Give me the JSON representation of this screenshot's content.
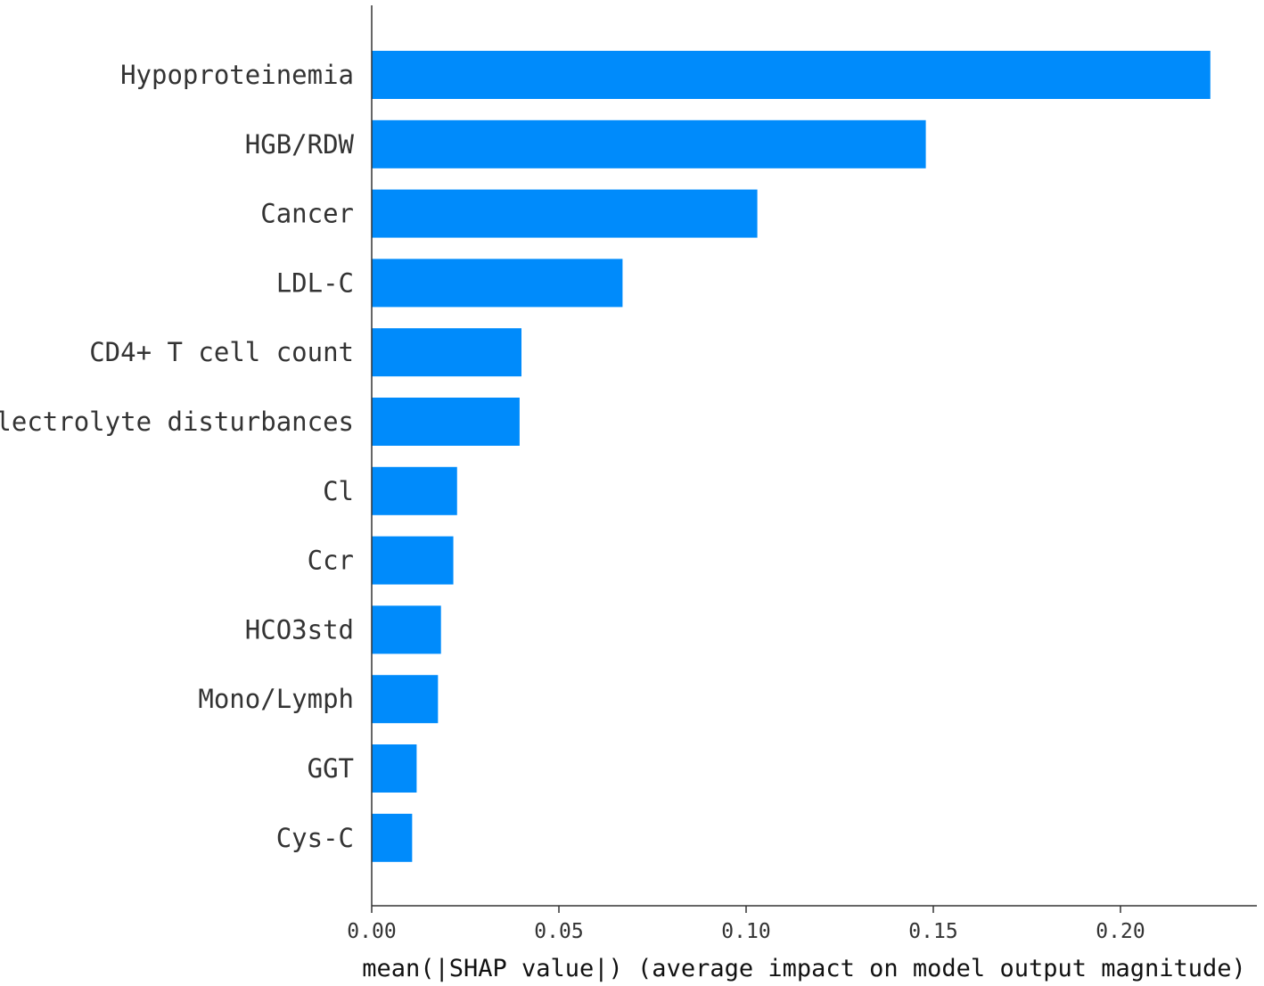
{
  "chart_data": {
    "type": "bar",
    "orientation": "horizontal",
    "title": "",
    "xlabel": "mean(|SHAP value|) (average impact on model output magnitude)",
    "ylabel": "",
    "categories": [
      "Hypoproteinemia",
      "HGB/RDW",
      "Cancer",
      "LDL-C",
      "CD4+ T cell count",
      "Electrolyte disturbances",
      "Cl",
      "Ccr",
      "HCO3std",
      "Mono/Lymph",
      "GGT",
      "Cys-C"
    ],
    "values": [
      0.224,
      0.148,
      0.103,
      0.067,
      0.04,
      0.0395,
      0.0228,
      0.0218,
      0.0185,
      0.0177,
      0.012,
      0.0108
    ],
    "xlim": [
      0,
      0.236
    ],
    "xticks": [
      0.0,
      0.05,
      0.1,
      0.15,
      0.2
    ],
    "xtick_labels": [
      "0.00",
      "0.05",
      "0.10",
      "0.15",
      "0.20"
    ],
    "bar_color": "#008bfb",
    "grid": false,
    "legend": "none"
  }
}
